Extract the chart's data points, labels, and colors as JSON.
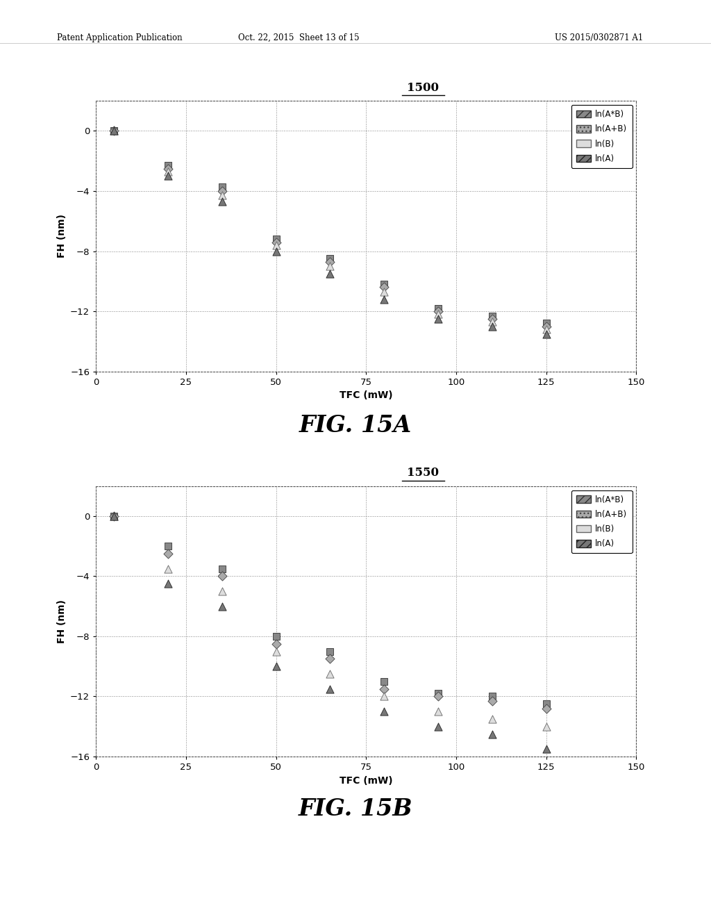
{
  "fig_width": 10.24,
  "fig_height": 13.2,
  "background_color": "#ffffff",
  "header_left": "Patent Application Publication",
  "header_mid": "Oct. 22, 2015  Sheet 13 of 15",
  "header_right": "US 2015/0302871 A1",
  "plot1": {
    "title": "1500",
    "xlabel": "TFC (mW)",
    "ylabel": "FH (nm)",
    "xlim": [
      0,
      150
    ],
    "ylim": [
      -16,
      2
    ],
    "xticks": [
      0,
      25,
      50,
      75,
      100,
      125,
      150
    ],
    "yticks": [
      -16,
      -12,
      -8,
      -4,
      0
    ],
    "fig_label": "FIG. 15A",
    "ln_AB_mult_x": [
      5,
      20,
      35,
      50,
      65,
      80,
      95,
      110,
      125
    ],
    "ln_AB_mult_y": [
      0,
      -2.3,
      -3.7,
      -7.2,
      -8.5,
      -10.2,
      -11.8,
      -12.3,
      -12.8
    ],
    "ln_AB_add_x": [
      5,
      20,
      35,
      50,
      65,
      80,
      95,
      110,
      125
    ],
    "ln_AB_add_y": [
      0,
      -2.5,
      -4.0,
      -7.4,
      -8.7,
      -10.4,
      -12.0,
      -12.5,
      -13.0
    ],
    "ln_B_x": [
      5,
      20,
      35,
      50,
      65,
      80,
      95,
      110,
      125
    ],
    "ln_B_y": [
      0,
      -2.7,
      -4.3,
      -7.6,
      -9.0,
      -10.7,
      -12.2,
      -12.7,
      -13.2
    ],
    "ln_A_x": [
      5,
      20,
      35,
      50,
      65,
      80,
      95,
      110,
      125
    ],
    "ln_A_y": [
      0,
      -3.0,
      -4.7,
      -8.0,
      -9.5,
      -11.2,
      -12.5,
      -13.0,
      -13.5
    ]
  },
  "plot2": {
    "title": "1550",
    "xlabel": "TFC (mW)",
    "ylabel": "FH (nm)",
    "xlim": [
      0,
      150
    ],
    "ylim": [
      -16,
      2
    ],
    "xticks": [
      0,
      25,
      50,
      75,
      100,
      125,
      150
    ],
    "yticks": [
      -16,
      -12,
      -8,
      -4,
      0
    ],
    "fig_label": "FIG. 15B",
    "ln_AB_mult_x": [
      5,
      20,
      35,
      50,
      65,
      80,
      95,
      110,
      125
    ],
    "ln_AB_mult_y": [
      0,
      -2.0,
      -3.5,
      -8.0,
      -9.0,
      -11.0,
      -11.8,
      -12.0,
      -12.5
    ],
    "ln_AB_add_x": [
      5,
      20,
      35,
      50,
      65,
      80,
      95,
      110,
      125
    ],
    "ln_AB_add_y": [
      0,
      -2.5,
      -4.0,
      -8.5,
      -9.5,
      -11.5,
      -12.0,
      -12.3,
      -12.8
    ],
    "ln_B_x": [
      5,
      20,
      35,
      50,
      65,
      80,
      95,
      110,
      125
    ],
    "ln_B_y": [
      0,
      -3.5,
      -5.0,
      -9.0,
      -10.5,
      -12.0,
      -13.0,
      -13.5,
      -14.0
    ],
    "ln_A_x": [
      5,
      20,
      35,
      50,
      65,
      80,
      95,
      110,
      125
    ],
    "ln_A_y": [
      0,
      -4.5,
      -6.0,
      -10.0,
      -11.5,
      -13.0,
      -14.0,
      -14.5,
      -15.5
    ]
  }
}
